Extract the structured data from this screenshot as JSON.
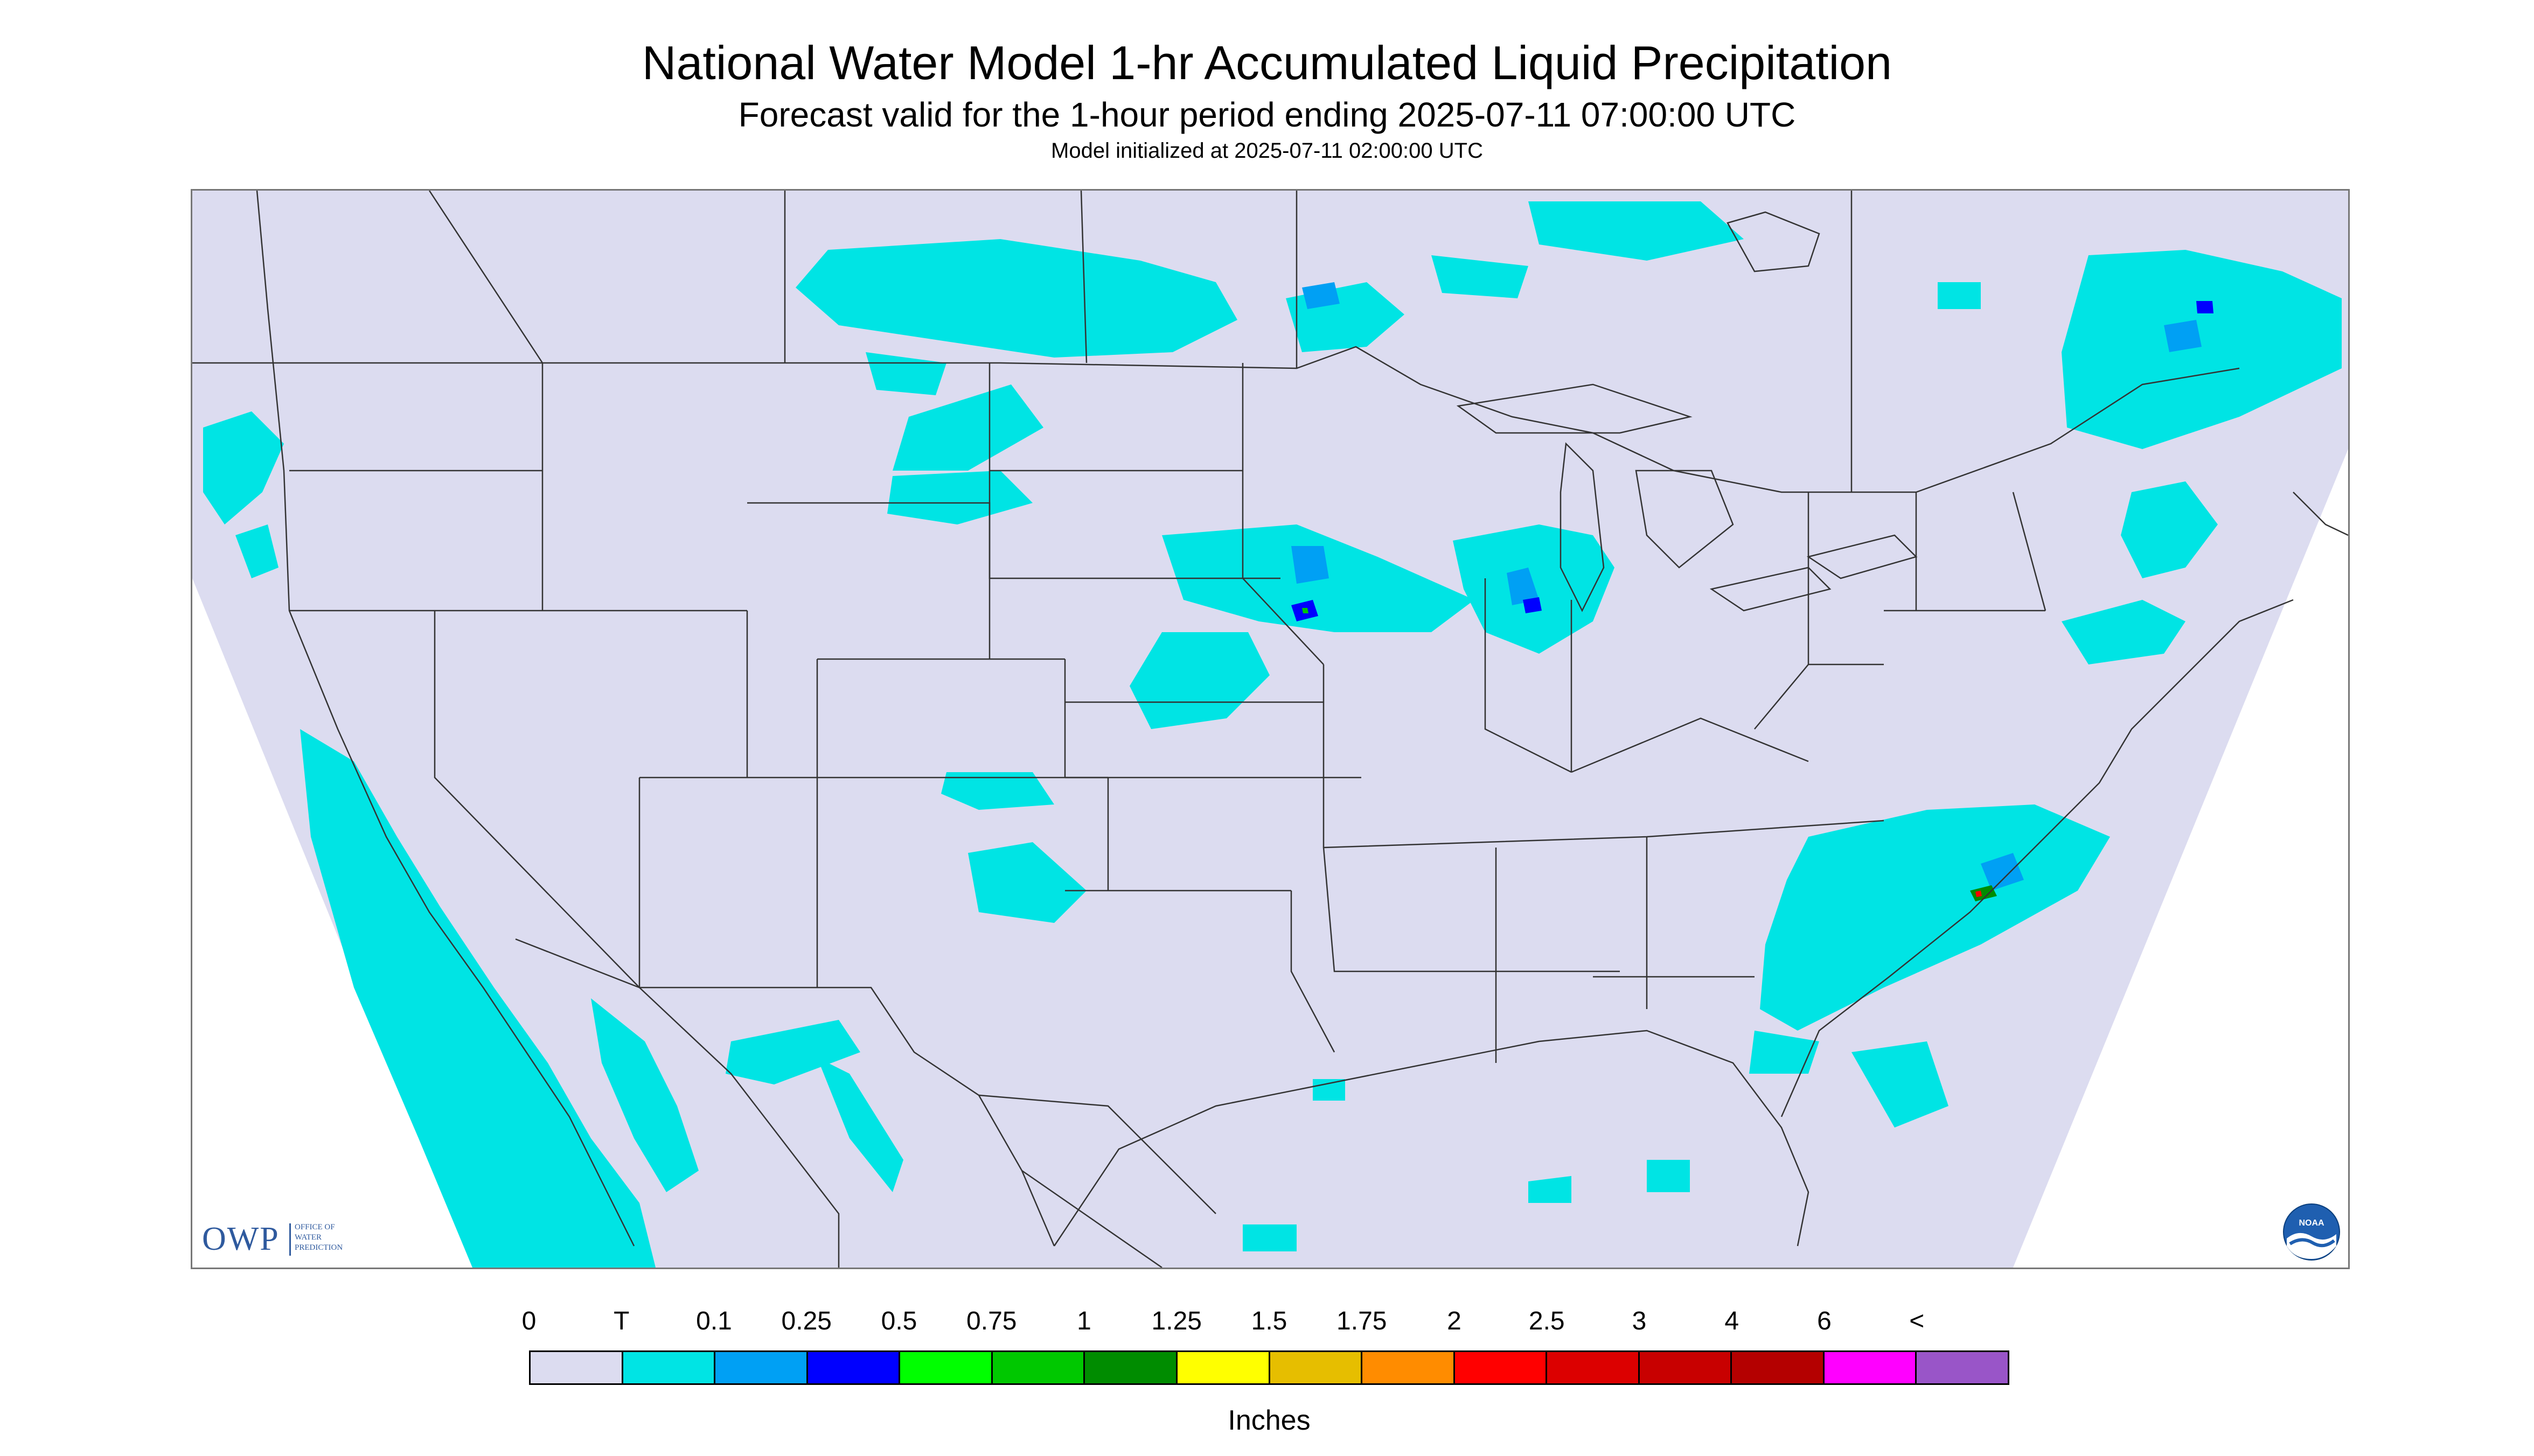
{
  "header": {
    "title": "National Water Model 1-hr Accumulated Liquid Precipitation",
    "subtitle": "Forecast valid for the 1-hour period ending 2025-07-11 07:00:00 UTC",
    "init": "Model initialized at 2025-07-11 02:00:00 UTC"
  },
  "colors": {
    "no_precip": "#dcdcf0",
    "outside": "#ffffff",
    "boundary": "#333333",
    "light_precip": "#00e4e4"
  },
  "legend": {
    "units": "Inches",
    "ticks": [
      "0",
      "T",
      "0.1",
      "0.25",
      "0.5",
      "0.75",
      "1",
      "1.25",
      "1.5",
      "1.75",
      "2",
      "2.5",
      "3",
      "4",
      "6",
      "<"
    ],
    "colors": [
      "#dcdcf0",
      "#00e4e4",
      "#00a0f4",
      "#0000ff",
      "#00ff00",
      "#00c800",
      "#008c00",
      "#ffff00",
      "#e6be00",
      "#ff8c00",
      "#ff0000",
      "#dc0000",
      "#c80000",
      "#b40000",
      "#ff00ff",
      "#9955c8"
    ]
  },
  "logos": {
    "owp_mark": "OWP",
    "owp_lines": [
      "OFFICE OF",
      "WATER",
      "PREDICTION"
    ],
    "noaa": "NOAA",
    "owp_icon": "owp-logo-icon",
    "noaa_icon": "noaa-logo-icon"
  }
}
